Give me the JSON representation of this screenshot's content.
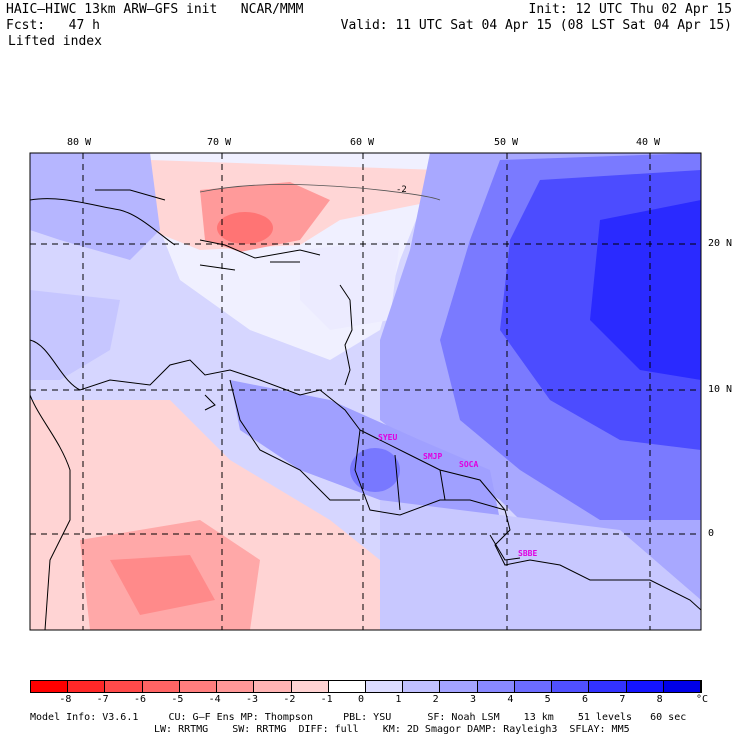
{
  "header": {
    "title_left": "HAIC–HIWC 13km ARW–GFS init   NCAR/MMM",
    "init": "Init: 12 UTC Thu 02 Apr 15",
    "fcst": "Fcst:   47 h",
    "valid": "Valid: 11 UTC Sat 04 Apr 15 (08 LST Sat 04 Apr 15)",
    "field": "Lifted index"
  },
  "axes": {
    "lon_labels": [
      "80 W",
      "70 W",
      "60 W",
      "50 W",
      "40 W"
    ],
    "lat_labels": [
      "20 N",
      "10 N",
      "0"
    ]
  },
  "stations": [
    "SYEU",
    "SMJP",
    "SOCA",
    "SBBE"
  ],
  "contour_label": "-2",
  "colorbar": {
    "ticks": [
      "-8",
      "-7",
      "-6",
      "-5",
      "-4",
      "-3",
      "-2",
      "-1",
      "0",
      "1",
      "2",
      "3",
      "4",
      "5",
      "6",
      "7",
      "8"
    ],
    "unit": "°C",
    "colors": [
      "#ff0000",
      "#ff2828",
      "#ff4a4a",
      "#ff6464",
      "#ff7e7e",
      "#ff9898",
      "#ffb4b4",
      "#ffd2d2",
      "#ffffff",
      "#dcdcff",
      "#c0c0ff",
      "#a4a4ff",
      "#8888ff",
      "#6c6cff",
      "#5050ff",
      "#3232ff",
      "#1414ff",
      "#0000e8"
    ]
  },
  "footer": {
    "line1": "Model Info: V3.6.1     CU: G–F Ens MP: Thompson     PBL: YSU      SF: Noah LSM    13 km    51 levels   60 sec",
    "line2": "LW: RRTMG    SW: RRTMG  DIFF: full    KM: 2D Smagor DAMP: Rayleigh3  SFLAY: MM5"
  }
}
